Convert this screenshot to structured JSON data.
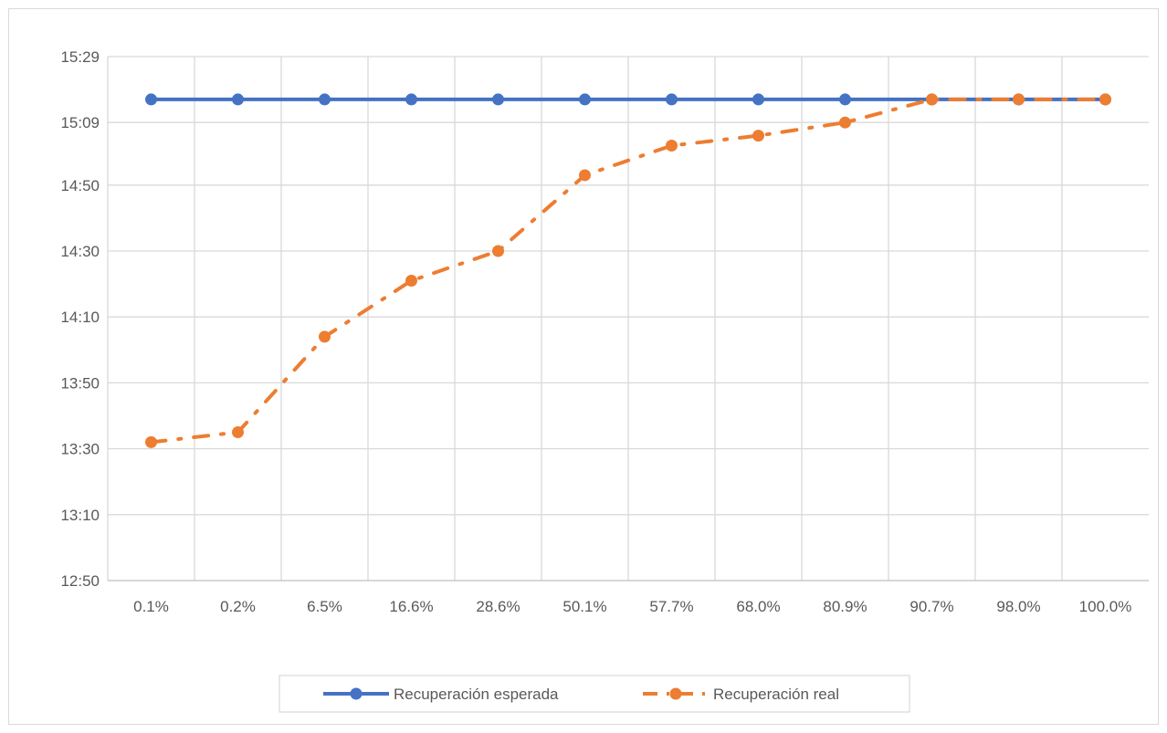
{
  "chart_data": {
    "type": "line",
    "title": "",
    "xlabel": "",
    "ylabel": "",
    "categories": [
      "0.1%",
      "0.2%",
      "6.5%",
      "16.6%",
      "28.6%",
      "50.1%",
      "57.7%",
      "68.0%",
      "80.9%",
      "90.7%",
      "98.0%",
      "100.0%"
    ],
    "y_axis": {
      "format": "time-mm:ss",
      "ticks": [
        "12:50",
        "13:10",
        "13:30",
        "13:50",
        "14:10",
        "14:30",
        "14:50",
        "15:09",
        "15:29"
      ],
      "tick_seconds": [
        770,
        790,
        810,
        830,
        850,
        870,
        890,
        909,
        929
      ],
      "ylim_seconds": [
        770,
        929
      ]
    },
    "series": [
      {
        "name": "Recuperación esperada",
        "color": "#4472C4",
        "line_style": "solid",
        "marker": "circle",
        "values_seconds": [
          916,
          916,
          916,
          916,
          916,
          916,
          916,
          916,
          916,
          916,
          916,
          916
        ]
      },
      {
        "name": "Recuperación real",
        "color": "#ED7D31",
        "line_style": "dash-dot",
        "marker": "circle",
        "values_seconds": [
          812,
          815,
          844,
          861,
          870,
          893,
          902,
          905,
          909,
          916,
          916,
          916
        ]
      }
    ],
    "grid": true,
    "legend_position": "bottom"
  }
}
